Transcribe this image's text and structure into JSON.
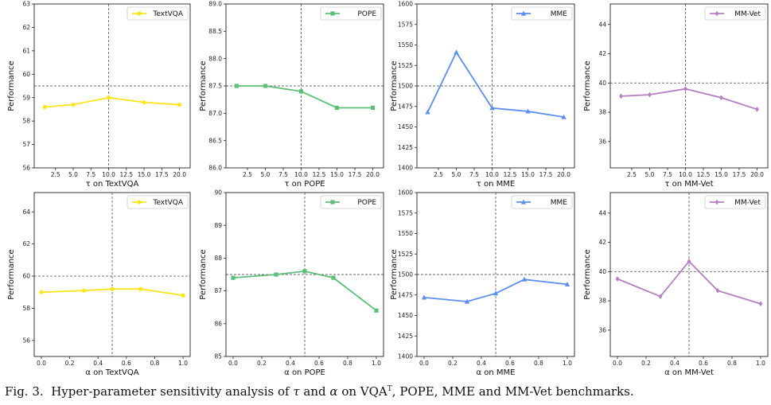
{
  "caption": {
    "prefix": "Fig. 3.",
    "text_a": "Hyper-parameter sensitivity analysis of",
    "tau": "τ",
    "and": "and",
    "alpha": "α",
    "text_b": "on VQA",
    "sup": "T",
    "text_c": ", POPE, MME and MM-Vet benchmarks."
  },
  "chart_data": [
    {
      "type": "line",
      "series": [
        {
          "name": "TextVQA",
          "x": [
            1,
            5,
            10,
            15,
            20
          ],
          "values": [
            58.6,
            58.7,
            59.0,
            58.8,
            58.7
          ],
          "color": "#ffe419"
        }
      ],
      "xlim": [
        -0.5,
        21.5
      ],
      "ylim": [
        56,
        63
      ],
      "xticks": [
        2.5,
        5.0,
        7.5,
        10.0,
        12.5,
        15.0,
        17.5,
        20.0
      ],
      "xtick_labels": [
        "2.5",
        "5.0",
        "7.5",
        "10.0",
        "12.5",
        "15.0",
        "17.5",
        "20.0"
      ],
      "yticks": [
        56,
        57,
        58,
        59,
        60,
        61,
        62,
        63
      ],
      "ytick_labels": [
        "56",
        "57",
        "58",
        "59",
        "60",
        "61",
        "62",
        "63"
      ],
      "hline": 59.5,
      "vline": 10,
      "marker": "circle",
      "xlabel": "τ on TextVQA",
      "ylabel": "Performance",
      "legend": "top-right"
    },
    {
      "type": "line",
      "series": [
        {
          "name": "POPE",
          "x": [
            1,
            5,
            10,
            15,
            20
          ],
          "values": [
            87.5,
            87.5,
            87.4,
            87.1,
            87.1
          ],
          "color": "#5cc07a"
        }
      ],
      "xlim": [
        -0.5,
        21.5
      ],
      "ylim": [
        86.0,
        89.0
      ],
      "xticks": [
        2.5,
        5.0,
        7.5,
        10.0,
        12.5,
        15.0,
        17.5,
        20.0
      ],
      "xtick_labels": [
        "2.5",
        "5.0",
        "7.5",
        "10.0",
        "12.5",
        "15.0",
        "17.5",
        "20.0"
      ],
      "yticks": [
        86.0,
        86.5,
        87.0,
        87.5,
        88.0,
        88.5,
        89.0
      ],
      "ytick_labels": [
        "86.0",
        "86.5",
        "87.0",
        "87.5",
        "88.0",
        "88.5",
        "89.0"
      ],
      "hline": 87.5,
      "vline": 10,
      "marker": "square",
      "xlabel": "τ on POPE",
      "ylabel": "Performance",
      "legend": "top-right"
    },
    {
      "type": "line",
      "series": [
        {
          "name": "MME",
          "x": [
            1,
            5,
            10,
            15,
            20
          ],
          "values": [
            1468,
            1541,
            1473,
            1469,
            1462
          ],
          "color": "#5b8ff0"
        }
      ],
      "xlim": [
        -0.5,
        21.5
      ],
      "ylim": [
        1400,
        1600
      ],
      "xticks": [
        2.5,
        5.0,
        7.5,
        10.0,
        12.5,
        15.0,
        17.5,
        20.0
      ],
      "xtick_labels": [
        "2.5",
        "5.0",
        "7.5",
        "10.0",
        "12.5",
        "15.0",
        "17.5",
        "20.0"
      ],
      "yticks": [
        1400,
        1425,
        1450,
        1475,
        1500,
        1525,
        1550,
        1575,
        1600
      ],
      "ytick_labels": [
        "1400",
        "1425",
        "1450",
        "1475",
        "1500",
        "1525",
        "1550",
        "1575",
        "1600"
      ],
      "hline": 1500,
      "vline": 10,
      "marker": "triangle",
      "xlabel": "τ on MME",
      "ylabel": "Performance",
      "legend": "top-right"
    },
    {
      "type": "line",
      "series": [
        {
          "name": "MM-Vet",
          "x": [
            1,
            5,
            10,
            15,
            20
          ],
          "values": [
            39.1,
            39.2,
            39.6,
            39.0,
            38.2
          ],
          "color": "#b57ec3"
        }
      ],
      "xlim": [
        -0.5,
        21.5
      ],
      "ylim": [
        34.2,
        45.4
      ],
      "xticks": [
        2.5,
        5.0,
        7.5,
        10.0,
        12.5,
        15.0,
        17.5,
        20.0
      ],
      "xtick_labels": [
        "2.5",
        "5.0",
        "7.5",
        "10.0",
        "12.5",
        "15.0",
        "17.5",
        "20.0"
      ],
      "yticks": [
        36,
        38,
        40,
        42,
        44
      ],
      "ytick_labels": [
        "36",
        "38",
        "40",
        "42",
        "44"
      ],
      "hline": 40,
      "vline": 10,
      "marker": "diamond",
      "xlabel": "τ on MM-Vet",
      "ylabel": "Performance",
      "legend": "top-right"
    },
    {
      "type": "line",
      "series": [
        {
          "name": "TextVQA",
          "x": [
            0.0,
            0.3,
            0.5,
            0.7,
            1.0
          ],
          "values": [
            59.0,
            59.1,
            59.2,
            59.2,
            58.8
          ],
          "color": "#ffe419"
        }
      ],
      "xlim": [
        -0.05,
        1.05
      ],
      "ylim": [
        55,
        65.2
      ],
      "xticks": [
        0.0,
        0.2,
        0.4,
        0.6,
        0.8,
        1.0
      ],
      "xtick_labels": [
        "0.0",
        "0.2",
        "0.4",
        "0.6",
        "0.8",
        "1.0"
      ],
      "yticks": [
        56,
        58,
        60,
        62,
        64
      ],
      "ytick_labels": [
        "56",
        "58",
        "60",
        "62",
        "64"
      ],
      "hline": 60,
      "vline": 0.5,
      "marker": "circle",
      "xlabel": "α on TextVQA",
      "ylabel": "Performance",
      "legend": "top-right"
    },
    {
      "type": "line",
      "series": [
        {
          "name": "POPE",
          "x": [
            0.0,
            0.3,
            0.5,
            0.7,
            1.0
          ],
          "values": [
            87.4,
            87.5,
            87.6,
            87.4,
            86.4
          ],
          "color": "#5cc07a"
        }
      ],
      "xlim": [
        -0.05,
        1.05
      ],
      "ylim": [
        85,
        90
      ],
      "xticks": [
        0.0,
        0.2,
        0.4,
        0.6,
        0.8,
        1.0
      ],
      "xtick_labels": [
        "0.0",
        "0.2",
        "0.4",
        "0.6",
        "0.8",
        "1.0"
      ],
      "yticks": [
        85,
        86,
        87,
        88,
        89,
        90
      ],
      "ytick_labels": [
        "85",
        "86",
        "87",
        "88",
        "89",
        "90"
      ],
      "hline": 87.5,
      "vline": 0.5,
      "marker": "square",
      "xlabel": "α on POPE",
      "ylabel": "Performance",
      "legend": "top-right"
    },
    {
      "type": "line",
      "series": [
        {
          "name": "MME",
          "x": [
            0.0,
            0.3,
            0.5,
            0.7,
            1.0
          ],
          "values": [
            1472,
            1467,
            1477,
            1494,
            1488
          ],
          "color": "#5b8ff0"
        }
      ],
      "xlim": [
        -0.05,
        1.05
      ],
      "ylim": [
        1400,
        1600
      ],
      "xticks": [
        0.0,
        0.2,
        0.4,
        0.6,
        0.8,
        1.0
      ],
      "xtick_labels": [
        "0.0",
        "0.2",
        "0.4",
        "0.6",
        "0.8",
        "1.0"
      ],
      "yticks": [
        1400,
        1425,
        1450,
        1475,
        1500,
        1525,
        1550,
        1575,
        1600
      ],
      "ytick_labels": [
        "1400",
        "1425",
        "1450",
        "1475",
        "1500",
        "1525",
        "1550",
        "1575",
        "1600"
      ],
      "hline": 1500,
      "vline": 0.5,
      "marker": "triangle",
      "xlabel": "α on MME",
      "ylabel": "Performance",
      "legend": "top-right"
    },
    {
      "type": "line",
      "series": [
        {
          "name": "MM-Vet",
          "x": [
            0.0,
            0.3,
            0.5,
            0.7,
            1.0
          ],
          "values": [
            39.5,
            38.3,
            40.7,
            38.7,
            37.8
          ],
          "color": "#b57ec3"
        }
      ],
      "xlim": [
        -0.05,
        1.05
      ],
      "ylim": [
        34.2,
        45.4
      ],
      "xticks": [
        0.0,
        0.2,
        0.4,
        0.6,
        0.8,
        1.0
      ],
      "xtick_labels": [
        "0.0",
        "0.2",
        "0.4",
        "0.6",
        "0.8",
        "1.0"
      ],
      "yticks": [
        36,
        38,
        40,
        42,
        44
      ],
      "ytick_labels": [
        "36",
        "38",
        "40",
        "42",
        "44"
      ],
      "hline": 40,
      "vline": 0.5,
      "marker": "diamond",
      "xlabel": "α on MM-Vet",
      "ylabel": "Performance",
      "legend": "top-right"
    }
  ]
}
